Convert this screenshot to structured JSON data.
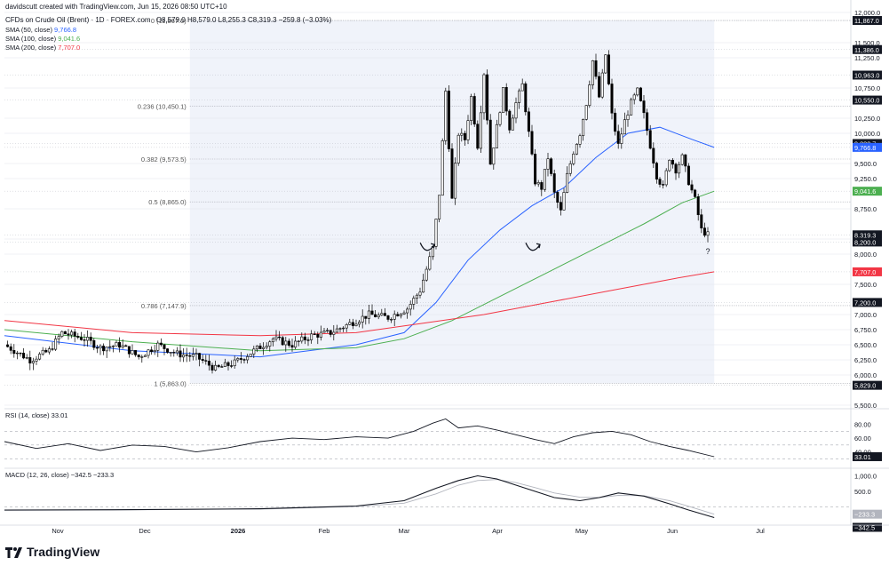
{
  "header": {
    "credit": "davidscutt created with TradingView.com, Jun 15, 2026 08:50 UTC+10",
    "symbol": "CFDs on Crude Oil (Brent) · 1D · FOREX.com",
    "ohlc": "O8,579.0  H8,579.0  L8,255.3  C8,319.3  −259.8 (−3.03%)"
  },
  "legend": {
    "sma50": "SMA (50, close)",
    "sma50_val": "9,766.8",
    "sma100": "SMA (100, close)",
    "sma100_val": "9,041.6",
    "sma200": "SMA (200, close)",
    "sma200_val": "7,707.0"
  },
  "colors": {
    "sma50": "#2962ff",
    "sma100": "#4caf50",
    "sma200": "#f23645",
    "candle": "#000000",
    "grid": "#e0e3eb",
    "fib_shade": "#f0f3fa"
  },
  "brand": {
    "name": "TradingView",
    "icon": "tradingview-logo-icon"
  },
  "chart_data": [
    {
      "type": "candlestick",
      "title": "CFDs on Crude Oil (Brent)",
      "ylim": [
        5500,
        12000
      ],
      "y_ticks": [
        "5,500.0",
        "6,000.0",
        "6,250.0",
        "6,500.0",
        "6,750.0",
        "7,000.0",
        "7,500.0",
        "8,000.0",
        "8,250.0",
        "8,750.0",
        "9,250.0",
        "9,500.0",
        "10,000.0",
        "10,250.0",
        "10,750.0",
        "11,250.0",
        "11,500.0",
        "12,000.0"
      ],
      "y_tick_values": [
        5500,
        6000,
        6250,
        6500,
        6750,
        7000,
        7500,
        8000,
        8250,
        8750,
        9250,
        9500,
        10000,
        10250,
        10750,
        11250,
        11500,
        12000
      ],
      "x_labels": [
        "Nov",
        "Dec",
        "2026",
        "Feb",
        "Mar",
        "Apr",
        "May",
        "Jun",
        "Jul"
      ],
      "price_tags": [
        {
          "label": "11,867.0",
          "value": 11867,
          "color": "#131722"
        },
        {
          "label": "11,386.0",
          "value": 11386,
          "color": "#131722"
        },
        {
          "label": "10,963.0",
          "value": 10963,
          "color": "#131722"
        },
        {
          "label": "10,550.0",
          "value": 10550,
          "color": "#131722"
        },
        {
          "label": "9,830.7",
          "value": 9830.7,
          "color": "#131722"
        },
        {
          "label": "9,766.8",
          "value": 9766.8,
          "color": "#2962ff"
        },
        {
          "label": "9,041.6",
          "value": 9041.6,
          "color": "#4caf50"
        },
        {
          "label": "8,319.3",
          "value": 8319.3,
          "color": "#131722"
        },
        {
          "label": "8,200.0",
          "value": 8200,
          "color": "#131722"
        },
        {
          "label": "7,707.0",
          "value": 7707,
          "color": "#f23645"
        },
        {
          "label": "7,200.0",
          "value": 7200,
          "color": "#131722"
        },
        {
          "label": "5,829.0",
          "value": 5829,
          "color": "#131722"
        }
      ],
      "fib_levels": [
        {
          "label": "0 (11,867.0)",
          "value": 11867
        },
        {
          "label": "0.236 (10,450.1)",
          "value": 10450.1
        },
        {
          "label": "0.382 (9,573.5)",
          "value": 9573.5
        },
        {
          "label": "0.5 (8,865.0)",
          "value": 8865
        },
        {
          "label": "0.786 (7,147.9)",
          "value": 7147.9
        },
        {
          "label": "1 (5,863.0)",
          "value": 5863
        }
      ],
      "annotation": "?",
      "close_path": [
        [
          0,
          6500
        ],
        [
          8,
          6250
        ],
        [
          14,
          6400
        ],
        [
          18,
          6700
        ],
        [
          25,
          6600
        ],
        [
          30,
          6450
        ],
        [
          36,
          6500
        ],
        [
          42,
          6300
        ],
        [
          48,
          6500
        ],
        [
          54,
          6350
        ],
        [
          60,
          6300
        ],
        [
          66,
          6100
        ],
        [
          72,
          6200
        ],
        [
          78,
          6400
        ],
        [
          84,
          6600
        ],
        [
          90,
          6500
        ],
        [
          96,
          6650
        ],
        [
          102,
          6700
        ],
        [
          108,
          6850
        ],
        [
          114,
          7000
        ],
        [
          120,
          6950
        ],
        [
          126,
          7100
        ],
        [
          130,
          7400
        ],
        [
          134,
          8100
        ],
        [
          136,
          9000
        ],
        [
          138,
          10700
        ],
        [
          140,
          8900
        ],
        [
          142,
          10000
        ],
        [
          144,
          9900
        ],
        [
          146,
          10600
        ],
        [
          148,
          9800
        ],
        [
          150,
          11000
        ],
        [
          152,
          9500
        ],
        [
          154,
          10100
        ],
        [
          156,
          10700
        ],
        [
          158,
          10100
        ],
        [
          160,
          10500
        ],
        [
          162,
          10800
        ],
        [
          164,
          10000
        ],
        [
          166,
          9200
        ],
        [
          168,
          9100
        ],
        [
          170,
          9600
        ],
        [
          172,
          9000
        ],
        [
          174,
          8700
        ],
        [
          176,
          9300
        ],
        [
          178,
          9700
        ],
        [
          180,
          10000
        ],
        [
          182,
          10500
        ],
        [
          184,
          11200
        ],
        [
          186,
          10600
        ],
        [
          188,
          11300
        ],
        [
          190,
          10300
        ],
        [
          192,
          9800
        ],
        [
          194,
          10200
        ],
        [
          196,
          10500
        ],
        [
          198,
          10700
        ],
        [
          200,
          10300
        ],
        [
          202,
          9800
        ],
        [
          204,
          9300
        ],
        [
          206,
          9100
        ],
        [
          208,
          9600
        ],
        [
          210,
          9400
        ],
        [
          212,
          9600
        ],
        [
          214,
          9200
        ],
        [
          216,
          8900
        ],
        [
          218,
          8400
        ],
        [
          220,
          8319
        ]
      ],
      "series": [
        {
          "name": "SMA (50, close)",
          "values": [
            [
              0,
              6650
            ],
            [
              40,
              6400
            ],
            [
              80,
              6300
            ],
            [
              110,
              6500
            ],
            [
              125,
              6700
            ],
            [
              135,
              7200
            ],
            [
              145,
              7900
            ],
            [
              155,
              8400
            ],
            [
              165,
              8800
            ],
            [
              175,
              9100
            ],
            [
              185,
              9600
            ],
            [
              195,
              10000
            ],
            [
              205,
              10100
            ],
            [
              215,
              9900
            ],
            [
              222,
              9766.8
            ]
          ]
        },
        {
          "name": "SMA (100, close)",
          "values": [
            [
              0,
              6750
            ],
            [
              40,
              6550
            ],
            [
              80,
              6400
            ],
            [
              110,
              6450
            ],
            [
              125,
              6600
            ],
            [
              140,
              6900
            ],
            [
              155,
              7300
            ],
            [
              170,
              7700
            ],
            [
              185,
              8100
            ],
            [
              200,
              8500
            ],
            [
              212,
              8850
            ],
            [
              222,
              9041.6
            ]
          ]
        },
        {
          "name": "SMA (200, close)",
          "values": [
            [
              0,
              6900
            ],
            [
              40,
              6700
            ],
            [
              80,
              6650
            ],
            [
              110,
              6700
            ],
            [
              130,
              6850
            ],
            [
              150,
              7000
            ],
            [
              170,
              7200
            ],
            [
              190,
              7400
            ],
            [
              210,
              7600
            ],
            [
              222,
              7707
            ]
          ]
        }
      ]
    },
    {
      "type": "line",
      "title": "RSI (14, close)",
      "value_label": "33.01",
      "ylim": [
        20,
        90
      ],
      "y_ticks": [
        "80.00",
        "60.00",
        "40.00"
      ],
      "y_tick_values": [
        80,
        60,
        40
      ],
      "series": [
        {
          "name": "RSI",
          "values": [
            [
              0,
              55
            ],
            [
              10,
              45
            ],
            [
              20,
              52
            ],
            [
              30,
              42
            ],
            [
              40,
              50
            ],
            [
              50,
              48
            ],
            [
              60,
              40
            ],
            [
              70,
              46
            ],
            [
              80,
              55
            ],
            [
              90,
              60
            ],
            [
              100,
              58
            ],
            [
              110,
              62
            ],
            [
              120,
              60
            ],
            [
              128,
              70
            ],
            [
              134,
              82
            ],
            [
              138,
              88
            ],
            [
              142,
              75
            ],
            [
              148,
              78
            ],
            [
              154,
              72
            ],
            [
              160,
              65
            ],
            [
              166,
              58
            ],
            [
              172,
              52
            ],
            [
              178,
              62
            ],
            [
              184,
              68
            ],
            [
              190,
              70
            ],
            [
              196,
              65
            ],
            [
              202,
              55
            ],
            [
              208,
              48
            ],
            [
              214,
              42
            ],
            [
              222,
              33.01
            ]
          ]
        }
      ]
    },
    {
      "type": "line",
      "title": "MACD (12, 26, close)",
      "value_label": "−342.5",
      "signal_label": "−233.3",
      "ylim": [
        -500,
        1100
      ],
      "y_ticks": [
        "1,000.0",
        "500.0"
      ],
      "y_tick_values": [
        1000,
        500
      ],
      "series": [
        {
          "name": "MACD",
          "values": [
            [
              0,
              -100
            ],
            [
              40,
              -90
            ],
            [
              80,
              -60
            ],
            [
              110,
              30
            ],
            [
              125,
              200
            ],
            [
              135,
              600
            ],
            [
              142,
              850
            ],
            [
              148,
              1000
            ],
            [
              154,
              900
            ],
            [
              160,
              700
            ],
            [
              166,
              500
            ],
            [
              172,
              300
            ],
            [
              180,
              200
            ],
            [
              186,
              300
            ],
            [
              192,
              450
            ],
            [
              200,
              350
            ],
            [
              208,
              100
            ],
            [
              214,
              -100
            ],
            [
              222,
              -342.5
            ]
          ]
        },
        {
          "name": "Signal",
          "values": [
            [
              0,
              -110
            ],
            [
              40,
              -95
            ],
            [
              80,
              -70
            ],
            [
              110,
              10
            ],
            [
              125,
              120
            ],
            [
              135,
              420
            ],
            [
              142,
              700
            ],
            [
              148,
              850
            ],
            [
              154,
              880
            ],
            [
              160,
              780
            ],
            [
              166,
              620
            ],
            [
              172,
              450
            ],
            [
              180,
              310
            ],
            [
              186,
              300
            ],
            [
              192,
              370
            ],
            [
              200,
              360
            ],
            [
              208,
              200
            ],
            [
              214,
              20
            ],
            [
              222,
              -233.3
            ]
          ]
        }
      ]
    }
  ]
}
